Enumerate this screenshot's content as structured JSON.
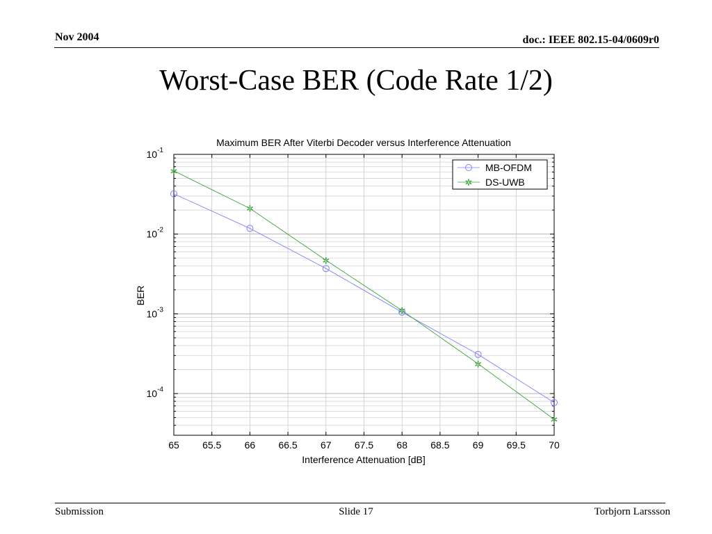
{
  "slide": {
    "header_left": "Nov 2004",
    "header_right": "doc.: IEEE 802.15-04/0609r0",
    "title": "Worst-Case BER (Code Rate 1/2)",
    "footer_left": "Submission",
    "footer_center": "Slide 17",
    "footer_right": "Torbjorn Larssson"
  },
  "chart_data": {
    "type": "line",
    "title": "Maximum BER After Viterbi Decoder versus Interference Attenuation",
    "xlabel": "Interference Attenuation [dB]",
    "ylabel": "BER",
    "xlim": [
      65,
      70
    ],
    "ylim": [
      3e-05,
      0.1
    ],
    "y_scale": "log",
    "grid": true,
    "legend_position": "top-right",
    "x_ticks": [
      "65",
      "65.5",
      "66",
      "66.5",
      "67",
      "67.5",
      "68",
      "68.5",
      "69",
      "69.5",
      "70"
    ],
    "y_ticks": [
      {
        "base": "10",
        "exp": "-1",
        "value": 0.1
      },
      {
        "base": "10",
        "exp": "-2",
        "value": 0.01
      },
      {
        "base": "10",
        "exp": "-3",
        "value": 0.001
      },
      {
        "base": "10",
        "exp": "-4",
        "value": 0.0001
      }
    ],
    "x": [
      65,
      66,
      67,
      68,
      69,
      70
    ],
    "series": [
      {
        "name": "MB-OFDM",
        "color": "#7f7fff",
        "marker": "circle",
        "values": [
          0.032,
          0.0118,
          0.0037,
          0.00105,
          0.00031,
          7.7e-05
        ]
      },
      {
        "name": "DS-UWB",
        "color": "#3aa33a",
        "marker": "star",
        "values": [
          0.062,
          0.021,
          0.0047,
          0.0011,
          0.000236,
          4.75e-05
        ]
      }
    ]
  }
}
